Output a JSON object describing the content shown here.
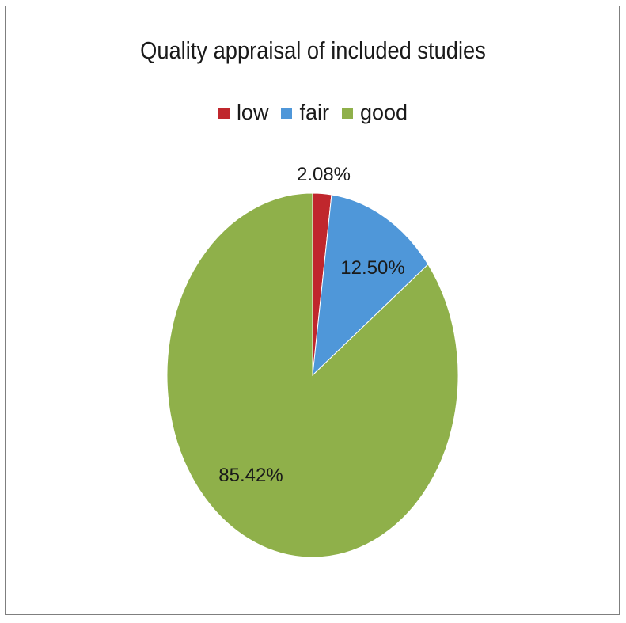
{
  "chart_data": {
    "type": "pie",
    "title": "Quality appraisal of included studies",
    "categories": [
      "low",
      "fair",
      "good"
    ],
    "values": [
      2.08,
      12.5,
      85.42
    ],
    "data_labels": [
      "2.08%",
      "12.50%",
      "85.42%"
    ],
    "colors": [
      "#c0272d",
      "#4f97d9",
      "#8fb04a"
    ],
    "legend_position": "top",
    "start_angle": "12 o'clock",
    "direction": "clockwise"
  }
}
